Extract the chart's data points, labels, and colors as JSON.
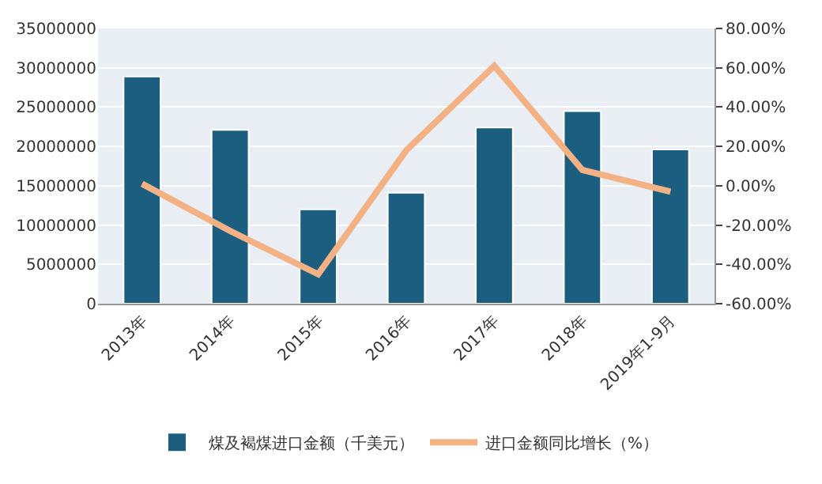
{
  "chart_data": {
    "type": "bar",
    "categories": [
      "2013年",
      "2014年",
      "2015年",
      "2016年",
      "2017年",
      "2018年",
      "2019年1-9月"
    ],
    "series": [
      {
        "name": "煤及褐煤进口金额（千美元）",
        "color": "#1b5e80",
        "values": [
          28900000,
          22100000,
          12000000,
          14100000,
          22400000,
          24500000,
          19600000
        ]
      },
      {
        "name": "进口金额同比增长（%）",
        "type": "line",
        "axis": "y2",
        "color": "#f4b183",
        "values": [
          1,
          -23,
          -45,
          18,
          61,
          8,
          -3
        ]
      }
    ],
    "ylim": [
      0,
      35000000
    ],
    "yticks": [
      0,
      5000000,
      10000000,
      15000000,
      20000000,
      25000000,
      30000000,
      35000000
    ],
    "y2lim": [
      -60,
      80
    ],
    "y2ticks": [
      {
        "value": -60,
        "label": "-60.00%"
      },
      {
        "value": -40,
        "label": "-40.00%"
      },
      {
        "value": -20,
        "label": "-20.00%"
      },
      {
        "value": 0,
        "label": "0.00%"
      },
      {
        "value": 20,
        "label": "20.00%"
      },
      {
        "value": 40,
        "label": "40.00%"
      },
      {
        "value": 60,
        "label": "60.00%"
      },
      {
        "value": 80,
        "label": "80.00%"
      }
    ],
    "grid": "y",
    "legend": "bottom",
    "marker": "none",
    "line_style": "solid"
  }
}
